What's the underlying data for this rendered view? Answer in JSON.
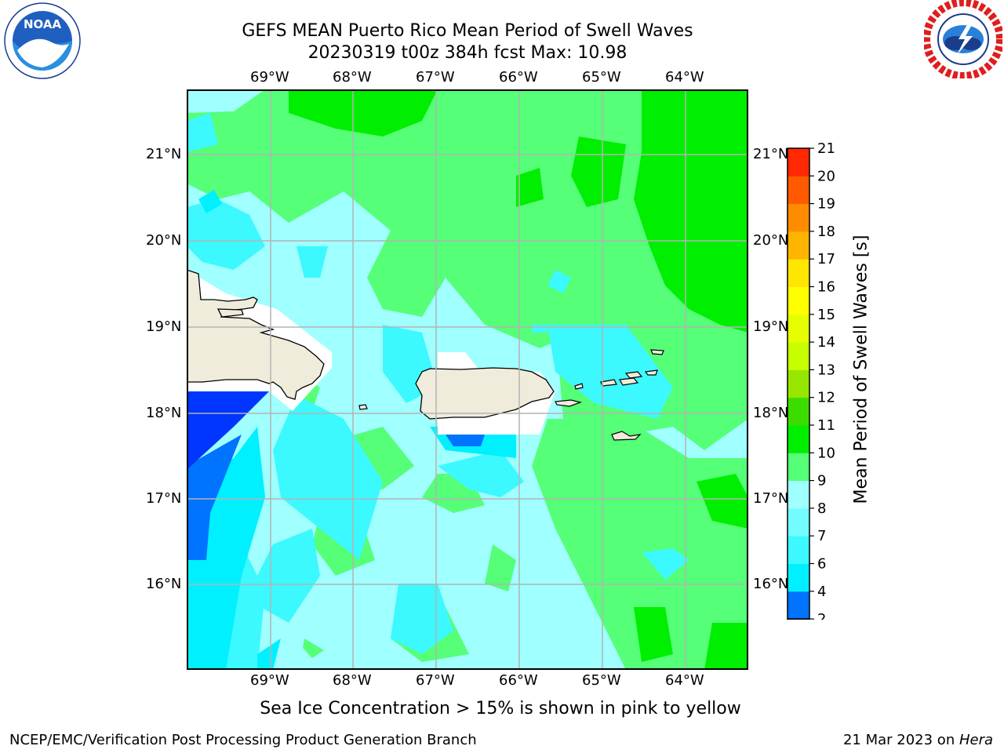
{
  "header": {
    "title_line1": "GEFS MEAN Puerto Rico Mean Period of Swell Waves",
    "title_line2": "20230319 t00z 384h fcst   Max: 10.98"
  },
  "logos": {
    "left": {
      "icon": "noaa-logo",
      "text": "NOAA",
      "ring_text": "NATIONAL OCEANIC AND ATMOSPHERIC ADMINISTRATION · U.S. DEPARTMENT OF COMMERCE"
    },
    "right": {
      "icon": "nws-logo",
      "ring_text": "NATIONAL WEATHER SERVICE"
    }
  },
  "map": {
    "lon_labels": [
      "69°W",
      "68°W",
      "67°W",
      "66°W",
      "65°W",
      "64°W"
    ],
    "lat_labels": [
      "21°N",
      "20°N",
      "19°N",
      "18°N",
      "17°N",
      "16°N"
    ],
    "land_color": "#efecdc",
    "grid_color": "#b4b4b4"
  },
  "colorbar": {
    "label": "Mean Period of Swell Waves [s]",
    "ticks": [
      "2",
      "4",
      "6",
      "7",
      "8",
      "9",
      "10",
      "11",
      "12",
      "13",
      "14",
      "15",
      "16",
      "17",
      "18",
      "19",
      "20",
      "21"
    ],
    "colors": [
      "#0036ff",
      "#0073ff",
      "#00f0ff",
      "#3cf8ff",
      "#73fcff",
      "#a0ffff",
      "#55ff78",
      "#00ee00",
      "#3cdc00",
      "#96e600",
      "#c8ff00",
      "#e6ff00",
      "#ffff00",
      "#ffe600",
      "#ffb400",
      "#ff8c00",
      "#ff5a00",
      "#ff2800",
      "#ff0000"
    ]
  },
  "note": "Sea Ice Concentration > 15% is shown in pink to yellow",
  "footer": {
    "left": "NCEP/EMC/Verification Post Processing Product Generation Branch",
    "right_date": "21 Mar 2023 on ",
    "right_machine": "Hera"
  }
}
